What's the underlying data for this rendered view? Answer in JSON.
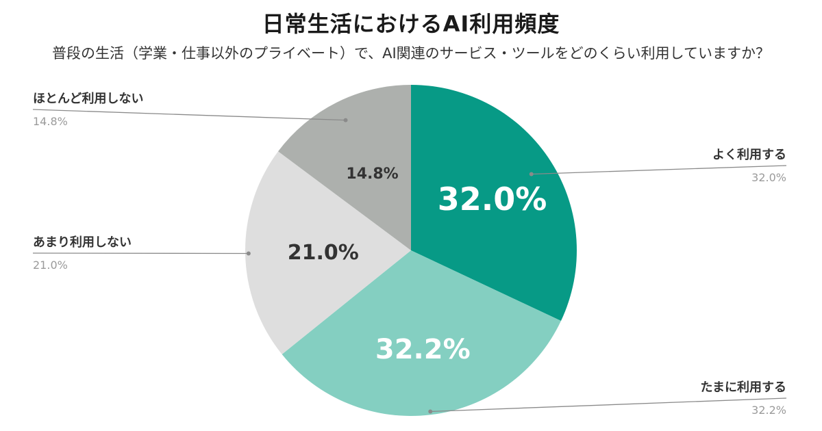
{
  "title": "日常生活におけるAI利用頻度",
  "subtitle": "普段の生活（学業・仕事以外のプライベート）で、AI関連のサービス・ツールをどのくらい利用していますか？",
  "chart_data": {
    "type": "pie",
    "title": "日常生活におけるAI利用頻度",
    "subtitle": "普段の生活（学業・仕事以外のプライベート）で、AI関連のサービス・ツールをどのくらい利用していますか？",
    "slices": [
      {
        "label": "よく利用する",
        "value": 32.0,
        "display": "32.0%",
        "color": "#079a86",
        "text_color": "#ffffff"
      },
      {
        "label": "たまに利用する",
        "value": 32.2,
        "display": "32.2%",
        "color": "#84cfc1",
        "text_color": "#ffffff"
      },
      {
        "label": "あまり利用しない",
        "value": 21.0,
        "display": "21.0%",
        "color": "#dedede",
        "text_color": "#333333"
      },
      {
        "label": "ほとんど利用しない",
        "value": 14.8,
        "display": "14.8%",
        "color": "#adb0ad",
        "text_color": "#333333"
      }
    ],
    "start_angle": "top",
    "direction": "clockwise"
  }
}
